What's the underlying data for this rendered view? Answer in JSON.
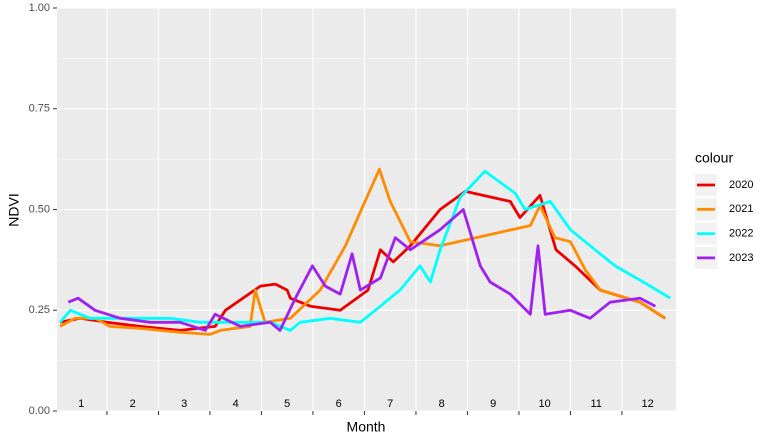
{
  "chart_data": {
    "type": "line",
    "xlabel": "Month",
    "ylabel": "NDVI",
    "legend_title": "colour",
    "legend": "right",
    "xlim": [
      0.53,
      12.55
    ],
    "xticks": [
      1,
      2,
      3,
      4,
      5,
      6,
      7,
      8,
      9,
      10,
      11,
      12
    ],
    "ylim": [
      0,
      1
    ],
    "yticks": [
      {
        "value": 0,
        "label": "0.00"
      },
      {
        "value": 0.25,
        "label": "0.25"
      },
      {
        "value": 0.5,
        "label": "0.50"
      },
      {
        "value": 0.75,
        "label": "0.75"
      },
      {
        "value": 1,
        "label": "1.00"
      }
    ],
    "grid": true,
    "series": [
      {
        "name": "2020",
        "color": "#ee0000",
        "x": [
          0.59,
          0.98,
          1.5,
          2.15,
          2.92,
          3.6,
          3.8,
          4.48,
          4.77,
          5.0,
          5.06,
          5.45,
          6.03,
          6.57,
          6.81,
          7.06,
          7.39,
          7.97,
          8.46,
          9.33,
          9.52,
          9.91,
          10.22,
          10.59,
          11.08,
          11.85,
          12.34
        ],
        "values": [
          0.22,
          0.23,
          0.22,
          0.21,
          0.2,
          0.21,
          0.25,
          0.31,
          0.315,
          0.3,
          0.28,
          0.26,
          0.25,
          0.3,
          0.4,
          0.37,
          0.41,
          0.5,
          0.545,
          0.52,
          0.48,
          0.535,
          0.4,
          0.36,
          0.3,
          0.27,
          0.23
        ]
      },
      {
        "name": "2021",
        "color": "#ff8c00",
        "x": [
          0.59,
          0.88,
          1.27,
          1.56,
          2.15,
          2.92,
          3.5,
          3.7,
          4.28,
          4.38,
          4.57,
          5.06,
          5.64,
          6.13,
          6.51,
          6.79,
          7.0,
          7.39,
          7.97,
          9.72,
          9.91,
          10.2,
          10.5,
          10.79,
          11.08,
          11.85,
          12.34
        ],
        "values": [
          0.21,
          0.23,
          0.23,
          0.21,
          0.205,
          0.195,
          0.19,
          0.2,
          0.21,
          0.3,
          0.22,
          0.23,
          0.3,
          0.41,
          0.52,
          0.6,
          0.52,
          0.42,
          0.41,
          0.46,
          0.51,
          0.43,
          0.42,
          0.35,
          0.3,
          0.27,
          0.23
        ]
      },
      {
        "name": "2022",
        "color": "#00ffff",
        "x": [
          0.59,
          0.79,
          1.17,
          1.95,
          2.73,
          3.31,
          3.89,
          4.67,
          5.06,
          5.25,
          5.83,
          6.42,
          6.81,
          7.19,
          7.58,
          7.78,
          7.97,
          8.36,
          8.84,
          9.43,
          9.62,
          10.11,
          10.5,
          10.98,
          11.37,
          12.05,
          12.44
        ],
        "values": [
          0.22,
          0.25,
          0.23,
          0.23,
          0.23,
          0.22,
          0.22,
          0.22,
          0.2,
          0.22,
          0.23,
          0.22,
          0.26,
          0.3,
          0.36,
          0.32,
          0.4,
          0.53,
          0.595,
          0.54,
          0.5,
          0.52,
          0.45,
          0.4,
          0.36,
          0.31,
          0.28
        ]
      },
      {
        "name": "2023",
        "color": "#a020f0",
        "x": [
          0.75,
          0.94,
          1.27,
          1.76,
          2.34,
          2.92,
          3.41,
          3.6,
          4.09,
          4.67,
          4.86,
          5.16,
          5.49,
          5.74,
          6.03,
          6.26,
          6.42,
          6.81,
          7.1,
          7.39,
          7.97,
          8.42,
          8.75,
          8.94,
          9.33,
          9.72,
          9.87,
          10.01,
          10.5,
          10.88,
          11.27,
          11.85,
          12.15
        ],
        "values": [
          0.27,
          0.28,
          0.25,
          0.23,
          0.22,
          0.22,
          0.2,
          0.24,
          0.21,
          0.22,
          0.2,
          0.28,
          0.36,
          0.31,
          0.29,
          0.39,
          0.3,
          0.33,
          0.43,
          0.4,
          0.45,
          0.5,
          0.36,
          0.32,
          0.29,
          0.24,
          0.41,
          0.24,
          0.25,
          0.23,
          0.27,
          0.28,
          0.26
        ]
      }
    ]
  }
}
